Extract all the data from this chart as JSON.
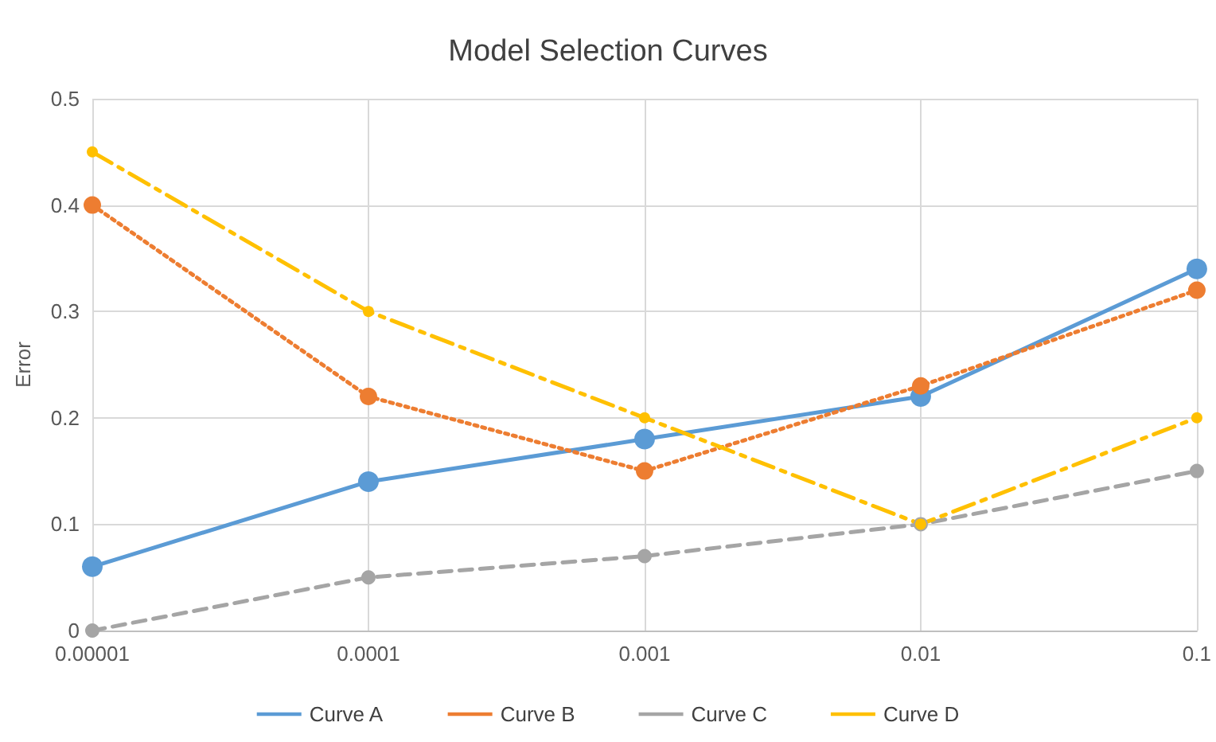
{
  "chart_data": {
    "type": "line",
    "title": "Model Selection Curves",
    "ylabel": "Error",
    "log": "x",
    "x": [
      1e-05,
      0.0001,
      0.001,
      0.01,
      0.1
    ],
    "xlim": [
      1e-05,
      0.1
    ],
    "xticks": [
      {
        "value": 1e-05,
        "label": "0.00001"
      },
      0.0001,
      0.001,
      0.01,
      0.1
    ],
    "ylim": [
      0,
      0.5
    ],
    "yticks": [
      0,
      0.1,
      0.2,
      0.3,
      0.4,
      0.5
    ],
    "grid": true,
    "legend": "bottom",
    "marker": "circle",
    "series": [
      {
        "name": "Curve A",
        "color": "#5b9bd5",
        "line_style": "solid",
        "values": [
          0.06,
          0.14,
          0.18,
          0.22,
          0.34
        ]
      },
      {
        "name": "Curve B",
        "color": "#ed7d31",
        "line_style": "dotted",
        "values": [
          0.4,
          0.22,
          0.15,
          0.23,
          0.32
        ]
      },
      {
        "name": "Curve C",
        "color": "#a5a5a5",
        "line_style": "dashed",
        "values": [
          0,
          0.05,
          0.07,
          0.1,
          0.15
        ]
      },
      {
        "name": "Curve D",
        "color": "#ffc000",
        "line_style": "dashdot",
        "values": [
          0.45,
          0.3,
          0.2,
          0.1,
          0.2
        ]
      }
    ]
  }
}
